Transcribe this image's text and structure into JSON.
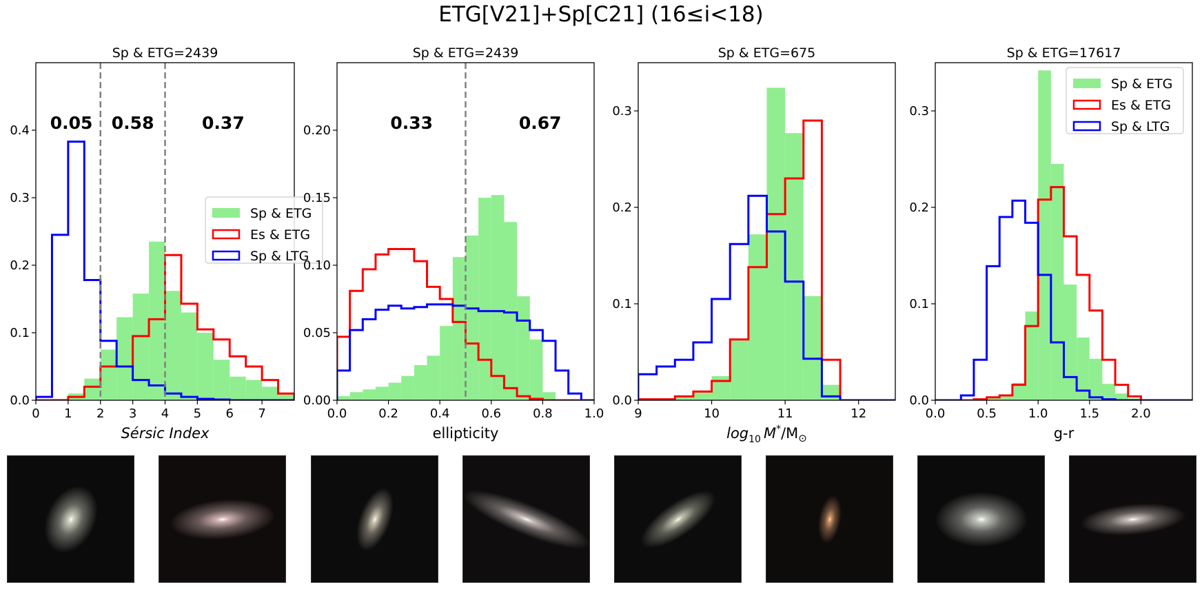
{
  "figure_title": "ETG[V21]+Sp[C21] (16≤i<18)",
  "legend_labels": [
    "Sp & ETG",
    "Es & ETG",
    "Sp & LTG"
  ],
  "colors": {
    "sp_etg": "#90ee90",
    "es_etg": "#ff0000",
    "sp_ltg": "#0000ff",
    "divider": "#808080"
  },
  "chart_data": [
    {
      "type": "histogram",
      "title": "Sp & ETG=2439",
      "xlabel": "Sérsic Index",
      "ylabel": "",
      "xlim": [
        0,
        8
      ],
      "ylim": [
        0,
        0.5
      ],
      "xticks": [
        0,
        1,
        2,
        3,
        4,
        5,
        6,
        7
      ],
      "yticks": [
        0.0,
        0.1,
        0.2,
        0.3,
        0.4
      ],
      "bin_edges": [
        0,
        0.5,
        1,
        1.5,
        2,
        2.5,
        3,
        3.5,
        4,
        4.5,
        5,
        5.5,
        6,
        6.5,
        7,
        7.5,
        8
      ],
      "series": [
        {
          "name": "Sp & ETG",
          "style": "filled",
          "color": "#90ee90",
          "values": [
            0,
            0.002,
            0.01,
            0.032,
            0.075,
            0.123,
            0.158,
            0.235,
            0.162,
            0.13,
            0.1,
            0.06,
            0.035,
            0.03,
            0.02,
            0.01
          ]
        },
        {
          "name": "Es & ETG",
          "style": "step",
          "color": "#ff0000",
          "values": [
            0,
            0,
            0.005,
            0.02,
            0.05,
            0.05,
            0.095,
            0.12,
            0.215,
            0.143,
            0.105,
            0.09,
            0.065,
            0.05,
            0.03,
            0.01
          ]
        },
        {
          "name": "Sp & LTG",
          "style": "step",
          "color": "#0000ff",
          "values": [
            0.005,
            0.245,
            0.383,
            0.178,
            0.088,
            0.05,
            0.03,
            0.022,
            0.01,
            0.005,
            0.002,
            0.001,
            0,
            0,
            0,
            0
          ]
        }
      ],
      "dividers": [
        2,
        4
      ],
      "annotations": [
        {
          "text": "0.05",
          "x": 1.1
        },
        {
          "text": "0.58",
          "x": 3.0
        },
        {
          "text": "0.37",
          "x": 5.8
        }
      ],
      "annotation_y": 0.41,
      "legend": "center-right"
    },
    {
      "type": "histogram",
      "title": "Sp & ETG=2439",
      "xlabel": "ellipticity",
      "ylabel": "",
      "xlim": [
        0,
        1
      ],
      "ylim": [
        0,
        0.25
      ],
      "xticks": [
        0.0,
        0.2,
        0.4,
        0.6,
        0.8,
        1.0
      ],
      "yticks": [
        0.0,
        0.05,
        0.1,
        0.15,
        0.2
      ],
      "bin_edges": [
        0,
        0.05,
        0.1,
        0.15,
        0.2,
        0.25,
        0.3,
        0.35,
        0.4,
        0.45,
        0.5,
        0.55,
        0.6,
        0.65,
        0.7,
        0.75,
        0.8,
        0.85,
        0.9,
        0.95,
        1.0
      ],
      "series": [
        {
          "name": "Sp & ETG",
          "style": "filled",
          "color": "#90ee90",
          "values": [
            0.003,
            0.006,
            0.008,
            0.01,
            0.013,
            0.018,
            0.026,
            0.033,
            0.055,
            0.106,
            0.122,
            0.15,
            0.152,
            0.132,
            0.077,
            0.045,
            0.006,
            0,
            0,
            0
          ]
        },
        {
          "name": "Es & ETG",
          "style": "step",
          "color": "#ff0000",
          "values": [
            0.047,
            0.081,
            0.097,
            0.108,
            0.112,
            0.112,
            0.103,
            0.084,
            0.075,
            0.058,
            0.042,
            0.03,
            0.018,
            0.009,
            0.003,
            0.001,
            0,
            0,
            0,
            0
          ]
        },
        {
          "name": "Sp & LTG",
          "style": "step",
          "color": "#0000ff",
          "values": [
            0.022,
            0.052,
            0.06,
            0.067,
            0.07,
            0.068,
            0.069,
            0.071,
            0.071,
            0.07,
            0.068,
            0.066,
            0.066,
            0.065,
            0.059,
            0.052,
            0.044,
            0.022,
            0.005,
            0
          ]
        }
      ],
      "dividers": [
        0.5
      ],
      "annotations": [
        {
          "text": "0.33",
          "x": 0.29
        },
        {
          "text": "0.67",
          "x": 0.79
        }
      ],
      "annotation_y": 0.205,
      "legend": "none"
    },
    {
      "type": "histogram",
      "title": "Sp & ETG=675",
      "xlabel": "log10 M*/M⊙",
      "ylabel": "",
      "xlim": [
        9,
        12.5
      ],
      "ylim": [
        0,
        0.35
      ],
      "xticks": [
        9,
        10,
        11,
        12
      ],
      "yticks": [
        0.0,
        0.1,
        0.2,
        0.3
      ],
      "bin_edges": [
        9,
        9.25,
        9.5,
        9.75,
        10,
        10.25,
        10.5,
        10.75,
        11,
        11.25,
        11.5,
        11.75,
        12,
        12.25,
        12.5
      ],
      "series": [
        {
          "name": "Sp & ETG",
          "style": "filled",
          "color": "#90ee90",
          "values": [
            0,
            0.002,
            0.004,
            0.008,
            0.025,
            0.062,
            0.172,
            0.324,
            0.277,
            0.108,
            0.016,
            0,
            0,
            0
          ]
        },
        {
          "name": "Es & ETG",
          "style": "step",
          "color": "#ff0000",
          "values": [
            0.001,
            0.001,
            0.004,
            0.009,
            0.02,
            0.063,
            0.138,
            0.193,
            0.23,
            0.29,
            0.042,
            0,
            0,
            0
          ]
        },
        {
          "name": "Sp & LTG",
          "style": "step",
          "color": "#0000ff",
          "values": [
            0.027,
            0.035,
            0.042,
            0.06,
            0.105,
            0.162,
            0.212,
            0.175,
            0.123,
            0.043,
            0.004,
            0,
            0,
            0
          ]
        }
      ],
      "dividers": [],
      "annotations": [],
      "annotation_y": 0,
      "legend": "none"
    },
    {
      "type": "histogram",
      "title": "Sp & ETG=17617",
      "xlabel": "g-r",
      "ylabel": "",
      "xlim": [
        0,
        2.5
      ],
      "ylim": [
        0,
        0.35
      ],
      "xticks": [
        0.0,
        0.5,
        1.0,
        1.5,
        2.0
      ],
      "yticks": [
        0.0,
        0.1,
        0.2,
        0.3
      ],
      "bin_edges": [
        0,
        0.125,
        0.25,
        0.375,
        0.5,
        0.625,
        0.75,
        0.875,
        1.0,
        1.125,
        1.25,
        1.375,
        1.5,
        1.625,
        1.75,
        1.875,
        2.0,
        2.125,
        2.25,
        2.375,
        2.5
      ],
      "series": [
        {
          "name": "Sp & ETG",
          "style": "filled",
          "color": "#90ee90",
          "values": [
            0,
            0,
            0,
            0.001,
            0.003,
            0.006,
            0.018,
            0.092,
            0.342,
            0.245,
            0.12,
            0.065,
            0.043,
            0.017,
            0.007,
            0.002,
            0,
            0,
            0,
            0
          ]
        },
        {
          "name": "Es & ETG",
          "style": "step",
          "color": "#ff0000",
          "values": [
            0,
            0,
            0,
            0.001,
            0.003,
            0.005,
            0.016,
            0.077,
            0.208,
            0.221,
            0.17,
            0.13,
            0.093,
            0.042,
            0.016,
            0.004,
            0,
            0,
            0,
            0
          ]
        },
        {
          "name": "Sp & LTG",
          "style": "step",
          "color": "#0000ff",
          "values": [
            0,
            0,
            0.005,
            0.042,
            0.139,
            0.19,
            0.207,
            0.184,
            0.13,
            0.06,
            0.024,
            0.01,
            0.003,
            0.001,
            0,
            0,
            0,
            0,
            0,
            0
          ]
        }
      ],
      "dividers": [],
      "annotations": [],
      "annotation_y": 0,
      "legend": "top-right"
    }
  ],
  "galaxy_thumbnails": [
    {
      "label": "galaxy-1",
      "bg": "#0b0b0b",
      "tint": "#cfd2c2",
      "core": "#fffff6",
      "rot": -65,
      "rx": 32,
      "ry": 22
    },
    {
      "label": "galaxy-2",
      "bg": "#100c0c",
      "tint": "#d9b8b8",
      "core": "#ffffff",
      "rot": -5,
      "rx": 48,
      "ry": 18
    },
    {
      "label": "galaxy-3",
      "bg": "#0c0c0c",
      "tint": "#d4ccb8",
      "core": "#fffde8",
      "rot": -70,
      "rx": 30,
      "ry": 14
    },
    {
      "label": "galaxy-4",
      "bg": "#0f0d0d",
      "tint": "#c8c0bc",
      "core": "#fffaf0",
      "rot": 22,
      "rx": 62,
      "ry": 14
    },
    {
      "label": "galaxy-5",
      "bg": "#0c0c0c",
      "tint": "#c8c8b6",
      "core": "#fffff0",
      "rot": -35,
      "rx": 40,
      "ry": 15
    },
    {
      "label": "galaxy-6",
      "bg": "#0e0b0b",
      "tint": "#d89a6a",
      "core": "#ffe8c8",
      "rot": -80,
      "rx": 22,
      "ry": 10
    },
    {
      "label": "galaxy-7",
      "bg": "#0b0b0b",
      "tint": "#c9cbc4",
      "core": "#ffffff",
      "rot": 0,
      "rx": 42,
      "ry": 25
    },
    {
      "label": "galaxy-8",
      "bg": "#0d0b0b",
      "tint": "#d0c6c0",
      "core": "#ffffff",
      "rot": -5,
      "rx": 48,
      "ry": 14
    }
  ]
}
